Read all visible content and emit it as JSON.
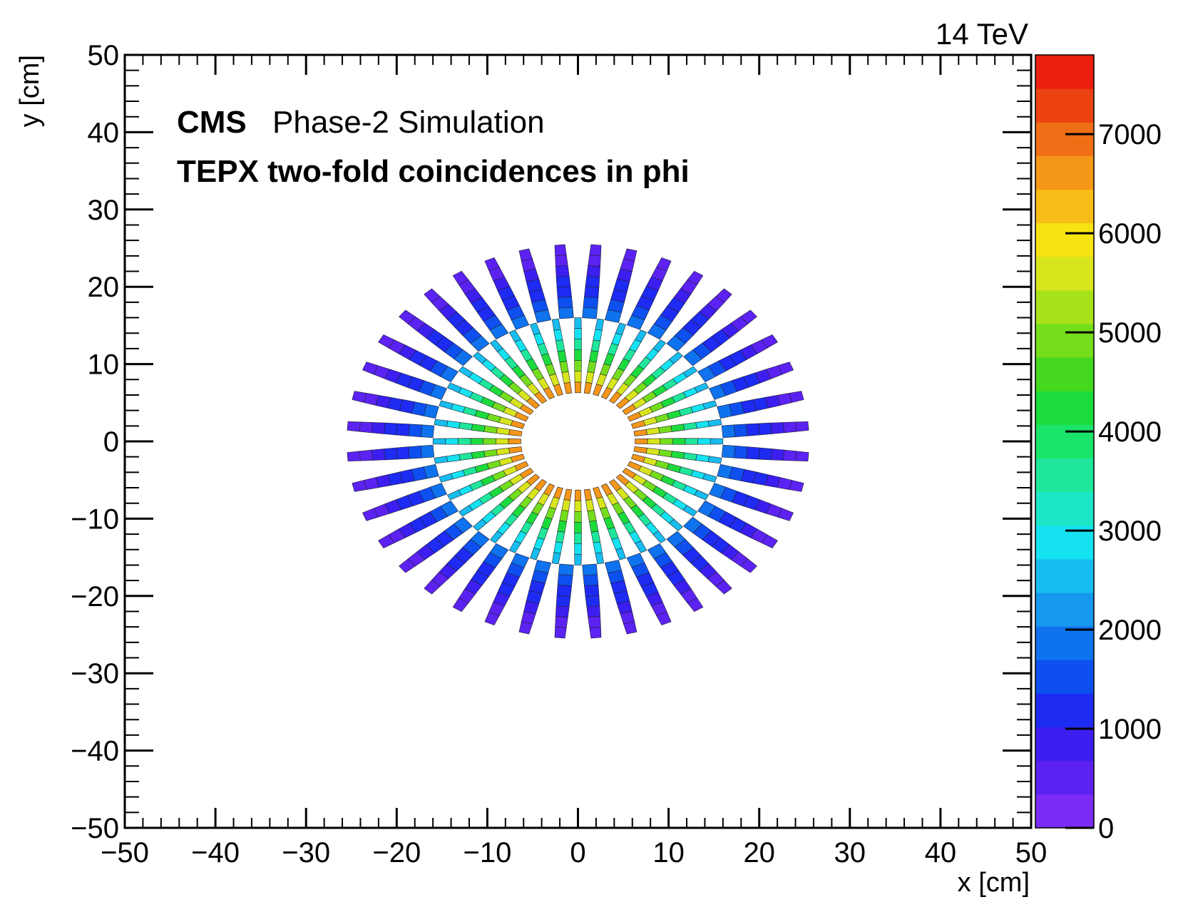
{
  "chart_data": {
    "type": "heatmap",
    "energy_label": "14 TeV",
    "experiment_label": "CMS",
    "status_label": "Phase-2 Simulation",
    "subtitle": "TEPX two-fold coincidences in phi",
    "xlabel": "x [cm]",
    "ylabel": "y [cm]",
    "xlim": [
      -50,
      50
    ],
    "ylim": [
      -50,
      50
    ],
    "x_ticks": [
      -50,
      -40,
      -30,
      -20,
      -10,
      0,
      10,
      20,
      30,
      40,
      50
    ],
    "x_tick_labels": [
      "−50",
      "−40",
      "−30",
      "−20",
      "−10",
      "0",
      "10",
      "20",
      "30",
      "40",
      "50"
    ],
    "y_ticks": [
      -50,
      -40,
      -30,
      -20,
      -10,
      0,
      10,
      20,
      30,
      40,
      50
    ],
    "y_tick_labels": [
      "−50",
      "−40",
      "−30",
      "−20",
      "−10",
      "0",
      "10",
      "20",
      "30",
      "40",
      "50"
    ],
    "zlim": [
      0,
      7800
    ],
    "z_ticks": [
      0,
      1000,
      2000,
      3000,
      4000,
      5000,
      6000,
      7000
    ],
    "z_tick_labels": [
      "0",
      "1000",
      "2000",
      "3000",
      "4000",
      "5000",
      "6000",
      "7000"
    ],
    "grid": false,
    "colormap": [
      "#7a2bf5",
      "#5c22f2",
      "#3d1ef0",
      "#1e2bf2",
      "#0e4ff0",
      "#0f72ee",
      "#1598ee",
      "#17bdef",
      "#14e2f0",
      "#1ce6c7",
      "#1ee69a",
      "#1ae46a",
      "#1cdc3c",
      "#44d81e",
      "#74dd1c",
      "#a8e21a",
      "#d8e51c",
      "#f6e312",
      "#f7bc16",
      "#f49618",
      "#f06e16",
      "#ed4212",
      "#ea1f10"
    ],
    "structure": {
      "rings": [
        {
          "name": "inner",
          "r_inner_cm": 6.3,
          "r_outer_cm": 16.0
        },
        {
          "name": "outer",
          "r_inner_cm": 16.0,
          "r_outer_cm": 25.5
        }
      ],
      "coincidence_wedges_per_ring": 40,
      "z_inner_edge": 7500,
      "z_ring_boundary": 2200,
      "z_outer_edge": 300
    }
  }
}
